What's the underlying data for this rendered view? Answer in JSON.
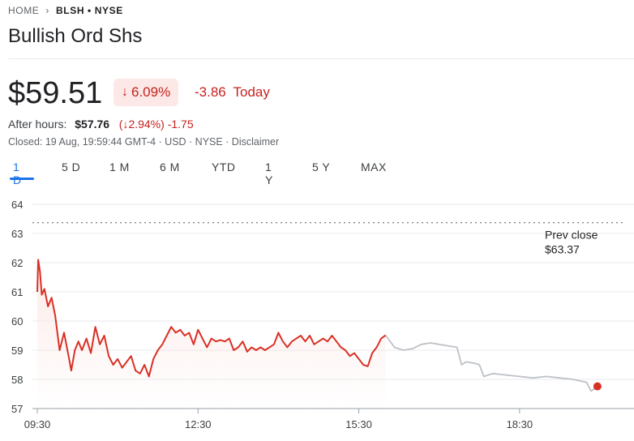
{
  "breadcrumb": {
    "home": "HOME",
    "ticker": "BLSH • NYSE"
  },
  "header": {
    "title": "Bullish Ord Shs"
  },
  "quote": {
    "price": "$59.51",
    "change_pct": "6.09%",
    "change_abs": "-3.86",
    "change_label": "Today",
    "after_label": "After hours:",
    "after_price": "$57.76",
    "after_pct": "2.94%",
    "after_change": "-1.75",
    "closed_info": "Closed: 19 Aug, 19:59:44 GMT-4 · USD · NYSE · Disclaimer"
  },
  "tabs": [
    "1 D",
    "5 D",
    "1 M",
    "6 M",
    "YTD",
    "1 Y",
    "5 Y",
    "MAX"
  ],
  "active_tab": 0,
  "colors": {
    "down": "#d93025",
    "afterhours": "#bdc1c6",
    "accent": "#1a73e8"
  },
  "chart_data": {
    "type": "line",
    "yticks": [
      57,
      58,
      59,
      60,
      61,
      62,
      63,
      64
    ],
    "xticks": [
      "09:30",
      "12:30",
      "15:30",
      "18:30"
    ],
    "ylim": [
      57,
      64
    ],
    "prev_close": {
      "label_line1": "Prev close",
      "label_line2": "$63.37",
      "value": 63.37
    },
    "series": [
      {
        "session": "regular",
        "points": [
          [
            "09:30",
            61.0
          ],
          [
            "09:31",
            62.1
          ],
          [
            "09:33",
            61.7
          ],
          [
            "09:35",
            60.9
          ],
          [
            "09:38",
            61.1
          ],
          [
            "09:42",
            60.5
          ],
          [
            "09:46",
            60.8
          ],
          [
            "09:50",
            60.2
          ],
          [
            "09:55",
            59.0
          ],
          [
            "10:00",
            59.6
          ],
          [
            "10:05",
            58.8
          ],
          [
            "10:08",
            58.3
          ],
          [
            "10:12",
            59.0
          ],
          [
            "10:16",
            59.3
          ],
          [
            "10:20",
            59.0
          ],
          [
            "10:25",
            59.4
          ],
          [
            "10:30",
            58.9
          ],
          [
            "10:35",
            59.8
          ],
          [
            "10:40",
            59.2
          ],
          [
            "10:45",
            59.5
          ],
          [
            "10:50",
            58.8
          ],
          [
            "10:55",
            58.5
          ],
          [
            "11:00",
            58.7
          ],
          [
            "11:05",
            58.4
          ],
          [
            "11:10",
            58.6
          ],
          [
            "11:15",
            58.8
          ],
          [
            "11:20",
            58.3
          ],
          [
            "11:25",
            58.2
          ],
          [
            "11:30",
            58.5
          ],
          [
            "11:35",
            58.1
          ],
          [
            "11:40",
            58.7
          ],
          [
            "11:45",
            59.0
          ],
          [
            "11:50",
            59.2
          ],
          [
            "11:55",
            59.5
          ],
          [
            "12:00",
            59.8
          ],
          [
            "12:05",
            59.6
          ],
          [
            "12:10",
            59.7
          ],
          [
            "12:15",
            59.5
          ],
          [
            "12:20",
            59.6
          ],
          [
            "12:25",
            59.2
          ],
          [
            "12:30",
            59.7
          ],
          [
            "12:35",
            59.4
          ],
          [
            "12:40",
            59.1
          ],
          [
            "12:45",
            59.4
          ],
          [
            "12:50",
            59.3
          ],
          [
            "12:55",
            59.35
          ],
          [
            "13:00",
            59.3
          ],
          [
            "13:05",
            59.4
          ],
          [
            "13:10",
            59.0
          ],
          [
            "13:15",
            59.1
          ],
          [
            "13:20",
            59.3
          ],
          [
            "13:25",
            58.95
          ],
          [
            "13:30",
            59.1
          ],
          [
            "13:35",
            59.0
          ],
          [
            "13:40",
            59.1
          ],
          [
            "13:45",
            59.0
          ],
          [
            "13:50",
            59.1
          ],
          [
            "13:55",
            59.2
          ],
          [
            "14:00",
            59.6
          ],
          [
            "14:05",
            59.3
          ],
          [
            "14:10",
            59.1
          ],
          [
            "14:15",
            59.3
          ],
          [
            "14:20",
            59.4
          ],
          [
            "14:25",
            59.5
          ],
          [
            "14:30",
            59.3
          ],
          [
            "14:35",
            59.5
          ],
          [
            "14:40",
            59.2
          ],
          [
            "14:45",
            59.3
          ],
          [
            "14:50",
            59.4
          ],
          [
            "14:55",
            59.3
          ],
          [
            "15:00",
            59.5
          ],
          [
            "15:05",
            59.3
          ],
          [
            "15:10",
            59.1
          ],
          [
            "15:15",
            59.0
          ],
          [
            "15:20",
            58.8
          ],
          [
            "15:25",
            58.9
          ],
          [
            "15:30",
            58.7
          ],
          [
            "15:35",
            58.5
          ],
          [
            "15:40",
            58.45
          ],
          [
            "15:45",
            58.9
          ],
          [
            "15:50",
            59.1
          ],
          [
            "15:55",
            59.4
          ],
          [
            "16:00",
            59.51
          ]
        ]
      },
      {
        "session": "after_hours",
        "points": [
          [
            "16:00",
            59.51
          ],
          [
            "16:10",
            59.1
          ],
          [
            "16:20",
            59.0
          ],
          [
            "16:30",
            59.05
          ],
          [
            "16:40",
            59.2
          ],
          [
            "16:50",
            59.25
          ],
          [
            "17:00",
            59.2
          ],
          [
            "17:10",
            59.15
          ],
          [
            "17:20",
            59.1
          ],
          [
            "17:25",
            58.5
          ],
          [
            "17:30",
            58.6
          ],
          [
            "17:40",
            58.55
          ],
          [
            "17:45",
            58.5
          ],
          [
            "17:50",
            58.1
          ],
          [
            "17:55",
            58.15
          ],
          [
            "18:00",
            58.2
          ],
          [
            "18:15",
            58.15
          ],
          [
            "18:30",
            58.1
          ],
          [
            "18:45",
            58.05
          ],
          [
            "19:00",
            58.1
          ],
          [
            "19:15",
            58.05
          ],
          [
            "19:30",
            58.0
          ],
          [
            "19:45",
            57.9
          ],
          [
            "19:50",
            57.6
          ],
          [
            "19:55",
            57.7
          ],
          [
            "19:59",
            57.76
          ]
        ]
      }
    ]
  }
}
